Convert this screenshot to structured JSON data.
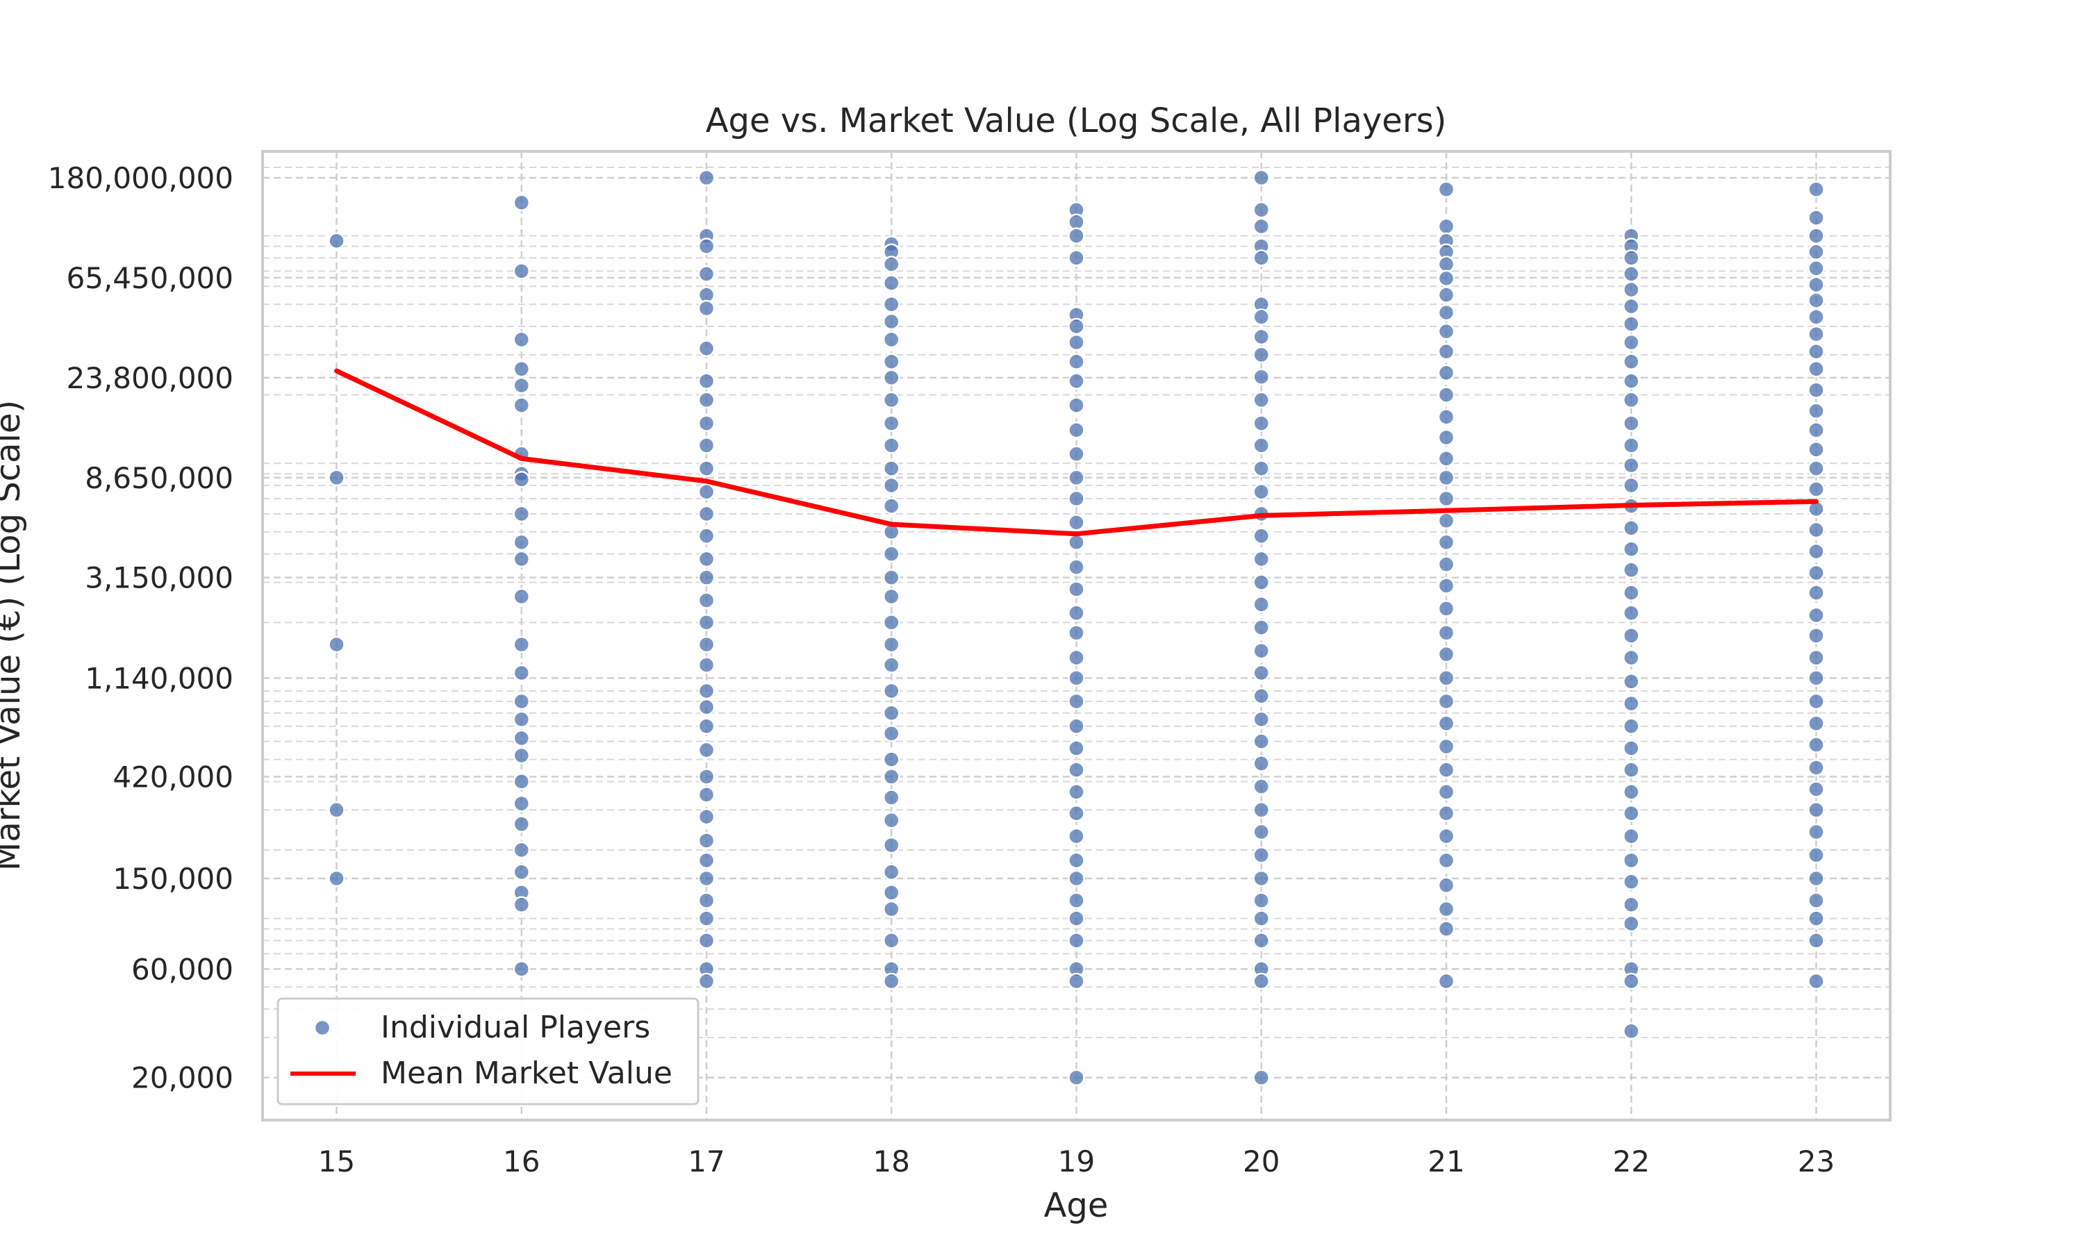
{
  "chart_data": {
    "type": "scatter",
    "title": "Age vs. Market Value (Log Scale, All Players)",
    "xlabel": "Age",
    "ylabel": "Market Value (€) (Log Scale)",
    "x_ticks": [
      "15",
      "16",
      "17",
      "18",
      "19",
      "20",
      "21",
      "22",
      "23"
    ],
    "y_tick_values": [
      20000,
      60000,
      150000,
      420000,
      1140000,
      3150000,
      8650000,
      23800000,
      65450000,
      180000000
    ],
    "y_tick_labels": [
      "20,000",
      "60,000",
      "150,000",
      "420,000",
      "1,140,000",
      "3,150,000",
      "8,650,000",
      "23,800,000",
      "65,450,000",
      "180,000,000"
    ],
    "xlim": [
      14.6,
      23.4
    ],
    "ylim": [
      13000,
      235000000
    ],
    "y_scale": "log",
    "grid": true,
    "legend_position": "lower-left",
    "series": [
      {
        "name": "Individual Players",
        "kind": "scatter",
        "color": "#4C72B0",
        "points": [
          [
            15,
            95000000
          ],
          [
            15,
            8650000
          ],
          [
            15,
            1600000
          ],
          [
            15,
            300000
          ],
          [
            15,
            150000
          ],
          [
            16,
            140000000
          ],
          [
            16,
            70000000
          ],
          [
            16,
            35000000
          ],
          [
            16,
            26000000
          ],
          [
            16,
            22000000
          ],
          [
            16,
            18000000
          ],
          [
            16,
            11000000
          ],
          [
            16,
            9000000
          ],
          [
            16,
            8500000
          ],
          [
            16,
            6000000
          ],
          [
            16,
            4500000
          ],
          [
            16,
            3800000
          ],
          [
            16,
            2600000
          ],
          [
            16,
            1600000
          ],
          [
            16,
            1200000
          ],
          [
            16,
            900000
          ],
          [
            16,
            750000
          ],
          [
            16,
            620000
          ],
          [
            16,
            520000
          ],
          [
            16,
            400000
          ],
          [
            16,
            320000
          ],
          [
            16,
            260000
          ],
          [
            16,
            200000
          ],
          [
            16,
            160000
          ],
          [
            16,
            130000
          ],
          [
            16,
            115000
          ],
          [
            16,
            60000
          ],
          [
            17,
            180000000
          ],
          [
            17,
            100000000
          ],
          [
            17,
            90000000
          ],
          [
            17,
            68000000
          ],
          [
            17,
            55000000
          ],
          [
            17,
            48000000
          ],
          [
            17,
            32000000
          ],
          [
            17,
            23000000
          ],
          [
            17,
            19000000
          ],
          [
            17,
            15000000
          ],
          [
            17,
            12000000
          ],
          [
            17,
            9500000
          ],
          [
            17,
            7500000
          ],
          [
            17,
            6000000
          ],
          [
            17,
            4800000
          ],
          [
            17,
            3800000
          ],
          [
            17,
            3150000
          ],
          [
            17,
            2500000
          ],
          [
            17,
            2000000
          ],
          [
            17,
            1600000
          ],
          [
            17,
            1300000
          ],
          [
            17,
            1000000
          ],
          [
            17,
            850000
          ],
          [
            17,
            700000
          ],
          [
            17,
            550000
          ],
          [
            17,
            420000
          ],
          [
            17,
            350000
          ],
          [
            17,
            280000
          ],
          [
            17,
            220000
          ],
          [
            17,
            180000
          ],
          [
            17,
            150000
          ],
          [
            17,
            120000
          ],
          [
            17,
            100000
          ],
          [
            17,
            80000
          ],
          [
            17,
            60000
          ],
          [
            17,
            53000
          ],
          [
            18,
            92000000
          ],
          [
            18,
            85000000
          ],
          [
            18,
            75000000
          ],
          [
            18,
            62000000
          ],
          [
            18,
            50000000
          ],
          [
            18,
            42000000
          ],
          [
            18,
            35000000
          ],
          [
            18,
            28000000
          ],
          [
            18,
            23800000
          ],
          [
            18,
            19000000
          ],
          [
            18,
            15000000
          ],
          [
            18,
            12000000
          ],
          [
            18,
            9500000
          ],
          [
            18,
            8000000
          ],
          [
            18,
            6500000
          ],
          [
            18,
            5000000
          ],
          [
            18,
            4000000
          ],
          [
            18,
            3150000
          ],
          [
            18,
            2600000
          ],
          [
            18,
            2000000
          ],
          [
            18,
            1600000
          ],
          [
            18,
            1300000
          ],
          [
            18,
            1000000
          ],
          [
            18,
            800000
          ],
          [
            18,
            650000
          ],
          [
            18,
            500000
          ],
          [
            18,
            420000
          ],
          [
            18,
            340000
          ],
          [
            18,
            270000
          ],
          [
            18,
            210000
          ],
          [
            18,
            160000
          ],
          [
            18,
            130000
          ],
          [
            18,
            110000
          ],
          [
            18,
            80000
          ],
          [
            18,
            60000
          ],
          [
            18,
            53000
          ],
          [
            19,
            130000000
          ],
          [
            19,
            115000000
          ],
          [
            19,
            100000000
          ],
          [
            19,
            80000000
          ],
          [
            19,
            45000000
          ],
          [
            19,
            40000000
          ],
          [
            19,
            34000000
          ],
          [
            19,
            28000000
          ],
          [
            19,
            23000000
          ],
          [
            19,
            18000000
          ],
          [
            19,
            14000000
          ],
          [
            19,
            11000000
          ],
          [
            19,
            8650000
          ],
          [
            19,
            7000000
          ],
          [
            19,
            5500000
          ],
          [
            19,
            4500000
          ],
          [
            19,
            3500000
          ],
          [
            19,
            2800000
          ],
          [
            19,
            2200000
          ],
          [
            19,
            1800000
          ],
          [
            19,
            1400000
          ],
          [
            19,
            1140000
          ],
          [
            19,
            900000
          ],
          [
            19,
            700000
          ],
          [
            19,
            560000
          ],
          [
            19,
            450000
          ],
          [
            19,
            360000
          ],
          [
            19,
            290000
          ],
          [
            19,
            230000
          ],
          [
            19,
            180000
          ],
          [
            19,
            150000
          ],
          [
            19,
            120000
          ],
          [
            19,
            100000
          ],
          [
            19,
            80000
          ],
          [
            19,
            60000
          ],
          [
            19,
            53000
          ],
          [
            19,
            20000
          ],
          [
            20,
            180000000
          ],
          [
            20,
            130000000
          ],
          [
            20,
            110000000
          ],
          [
            20,
            90000000
          ],
          [
            20,
            80000000
          ],
          [
            20,
            50000000
          ],
          [
            20,
            44000000
          ],
          [
            20,
            36000000
          ],
          [
            20,
            30000000
          ],
          [
            20,
            24000000
          ],
          [
            20,
            19000000
          ],
          [
            20,
            15000000
          ],
          [
            20,
            12000000
          ],
          [
            20,
            9500000
          ],
          [
            20,
            7500000
          ],
          [
            20,
            6000000
          ],
          [
            20,
            4800000
          ],
          [
            20,
            3800000
          ],
          [
            20,
            3000000
          ],
          [
            20,
            2400000
          ],
          [
            20,
            1900000
          ],
          [
            20,
            1500000
          ],
          [
            20,
            1200000
          ],
          [
            20,
            950000
          ],
          [
            20,
            750000
          ],
          [
            20,
            600000
          ],
          [
            20,
            480000
          ],
          [
            20,
            380000
          ],
          [
            20,
            300000
          ],
          [
            20,
            240000
          ],
          [
            20,
            190000
          ],
          [
            20,
            150000
          ],
          [
            20,
            120000
          ],
          [
            20,
            100000
          ],
          [
            20,
            80000
          ],
          [
            20,
            60000
          ],
          [
            20,
            53000
          ],
          [
            20,
            20000
          ],
          [
            21,
            160000000
          ],
          [
            21,
            110000000
          ],
          [
            21,
            95000000
          ],
          [
            21,
            85000000
          ],
          [
            21,
            75000000
          ],
          [
            21,
            65000000
          ],
          [
            21,
            55000000
          ],
          [
            21,
            46000000
          ],
          [
            21,
            38000000
          ],
          [
            21,
            31000000
          ],
          [
            21,
            25000000
          ],
          [
            21,
            20000000
          ],
          [
            21,
            16000000
          ],
          [
            21,
            13000000
          ],
          [
            21,
            10500000
          ],
          [
            21,
            8650000
          ],
          [
            21,
            7000000
          ],
          [
            21,
            5600000
          ],
          [
            21,
            4500000
          ],
          [
            21,
            3600000
          ],
          [
            21,
            2900000
          ],
          [
            21,
            2300000
          ],
          [
            21,
            1800000
          ],
          [
            21,
            1450000
          ],
          [
            21,
            1140000
          ],
          [
            21,
            900000
          ],
          [
            21,
            720000
          ],
          [
            21,
            570000
          ],
          [
            21,
            450000
          ],
          [
            21,
            360000
          ],
          [
            21,
            290000
          ],
          [
            21,
            230000
          ],
          [
            21,
            180000
          ],
          [
            21,
            140000
          ],
          [
            21,
            110000
          ],
          [
            21,
            90000
          ],
          [
            21,
            53000
          ],
          [
            22,
            100000000
          ],
          [
            22,
            90000000
          ],
          [
            22,
            80000000
          ],
          [
            22,
            68000000
          ],
          [
            22,
            58000000
          ],
          [
            22,
            49000000
          ],
          [
            22,
            41000000
          ],
          [
            22,
            34000000
          ],
          [
            22,
            28000000
          ],
          [
            22,
            23000000
          ],
          [
            22,
            19000000
          ],
          [
            22,
            15000000
          ],
          [
            22,
            12000000
          ],
          [
            22,
            9800000
          ],
          [
            22,
            8000000
          ],
          [
            22,
            6500000
          ],
          [
            22,
            5200000
          ],
          [
            22,
            4200000
          ],
          [
            22,
            3400000
          ],
          [
            22,
            2700000
          ],
          [
            22,
            2200000
          ],
          [
            22,
            1750000
          ],
          [
            22,
            1400000
          ],
          [
            22,
            1100000
          ],
          [
            22,
            880000
          ],
          [
            22,
            700000
          ],
          [
            22,
            560000
          ],
          [
            22,
            450000
          ],
          [
            22,
            360000
          ],
          [
            22,
            290000
          ],
          [
            22,
            230000
          ],
          [
            22,
            180000
          ],
          [
            22,
            145000
          ],
          [
            22,
            115000
          ],
          [
            22,
            95000
          ],
          [
            22,
            60000
          ],
          [
            22,
            53000
          ],
          [
            22,
            32000
          ],
          [
            23,
            160000000
          ],
          [
            23,
            120000000
          ],
          [
            23,
            100000000
          ],
          [
            23,
            85000000
          ],
          [
            23,
            72000000
          ],
          [
            23,
            61000000
          ],
          [
            23,
            52000000
          ],
          [
            23,
            44000000
          ],
          [
            23,
            37000000
          ],
          [
            23,
            31000000
          ],
          [
            23,
            26000000
          ],
          [
            23,
            21000000
          ],
          [
            23,
            17000000
          ],
          [
            23,
            14000000
          ],
          [
            23,
            11500000
          ],
          [
            23,
            9500000
          ],
          [
            23,
            7700000
          ],
          [
            23,
            6300000
          ],
          [
            23,
            5100000
          ],
          [
            23,
            4100000
          ],
          [
            23,
            3300000
          ],
          [
            23,
            2700000
          ],
          [
            23,
            2150000
          ],
          [
            23,
            1750000
          ],
          [
            23,
            1400000
          ],
          [
            23,
            1140000
          ],
          [
            23,
            900000
          ],
          [
            23,
            720000
          ],
          [
            23,
            580000
          ],
          [
            23,
            460000
          ],
          [
            23,
            370000
          ],
          [
            23,
            300000
          ],
          [
            23,
            240000
          ],
          [
            23,
            190000
          ],
          [
            23,
            150000
          ],
          [
            23,
            120000
          ],
          [
            23,
            100000
          ],
          [
            23,
            80000
          ],
          [
            23,
            53000
          ]
        ]
      },
      {
        "name": "Mean Market Value",
        "kind": "line",
        "color": "#ff0000",
        "x": [
          15,
          16,
          17,
          18,
          19,
          20,
          21,
          22,
          23
        ],
        "values": [
          25500000,
          10500000,
          8350000,
          5400000,
          4900000,
          5900000,
          6200000,
          6550000,
          6800000
        ]
      }
    ]
  }
}
